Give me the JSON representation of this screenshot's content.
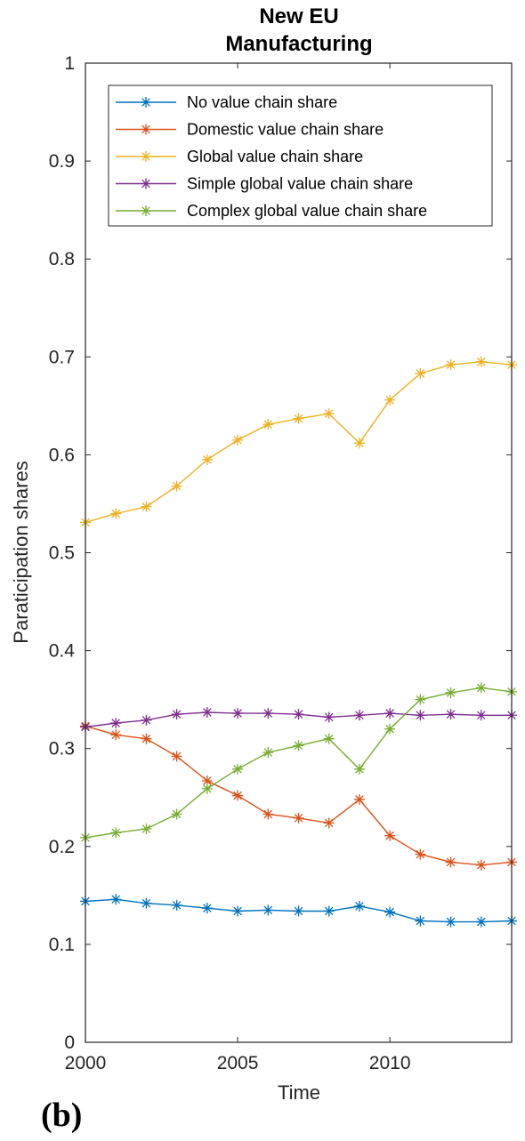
{
  "chart_data": {
    "type": "line",
    "title": [
      "New EU",
      "Manufacturing"
    ],
    "xlabel": "Time",
    "ylabel": "Paraticipation shares",
    "xlim": [
      2000,
      2014
    ],
    "ylim": [
      0,
      1
    ],
    "xticks": [
      2000,
      2005,
      2010
    ],
    "yticks": [
      0,
      0.1,
      0.2,
      0.3,
      0.4,
      0.5,
      0.6,
      0.7,
      0.8,
      0.9,
      1
    ],
    "ytick_labels": [
      "0",
      "0.1",
      "0.2",
      "0.3",
      "0.4",
      "0.5",
      "0.6",
      "0.7",
      "0.8",
      "0.9",
      "1"
    ],
    "legend_position": "top",
    "marker": "asterisk",
    "x": [
      2000,
      2001,
      2002,
      2003,
      2004,
      2005,
      2006,
      2007,
      2008,
      2009,
      2010,
      2011,
      2012,
      2013,
      2014
    ],
    "series": [
      {
        "name": "No value chain share",
        "color": "#0072BD",
        "values": [
          0.144,
          0.146,
          0.142,
          0.14,
          0.137,
          0.134,
          0.135,
          0.134,
          0.134,
          0.139,
          0.133,
          0.124,
          0.123,
          0.123,
          0.124
        ]
      },
      {
        "name": "Domestic value chain share",
        "color": "#D95319",
        "values": [
          0.323,
          0.314,
          0.31,
          0.292,
          0.267,
          0.252,
          0.233,
          0.229,
          0.224,
          0.248,
          0.211,
          0.192,
          0.184,
          0.181,
          0.184
        ]
      },
      {
        "name": "Global value chain share",
        "color": "#EDB120",
        "values": [
          0.531,
          0.54,
          0.547,
          0.568,
          0.595,
          0.615,
          0.631,
          0.637,
          0.642,
          0.612,
          0.656,
          0.683,
          0.692,
          0.695,
          0.692
        ]
      },
      {
        "name": "Simple global value chain share",
        "color": "#7E2F8E",
        "values": [
          0.322,
          0.326,
          0.329,
          0.335,
          0.337,
          0.336,
          0.336,
          0.335,
          0.332,
          0.334,
          0.336,
          0.334,
          0.335,
          0.334,
          0.334
        ]
      },
      {
        "name": "Complex global value chain share",
        "color": "#77AC30",
        "values": [
          0.209,
          0.214,
          0.218,
          0.233,
          0.259,
          0.279,
          0.296,
          0.303,
          0.31,
          0.279,
          0.32,
          0.35,
          0.357,
          0.362,
          0.358
        ]
      }
    ]
  },
  "panel_label": "(b)"
}
